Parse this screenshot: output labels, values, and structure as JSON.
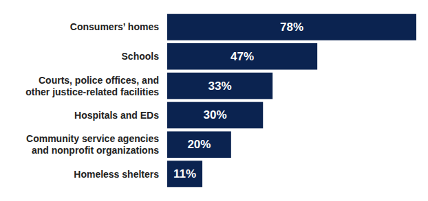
{
  "chart_data": {
    "type": "bar",
    "orientation": "horizontal",
    "categories": [
      "Consumers’ homes",
      "Schools",
      "Courts, police offices, and other justice-related facilities",
      "Hospitals and EDs",
      "Community service agencies and nonprofit organizations",
      "Homeless shelters"
    ],
    "values": [
      78,
      47,
      33,
      30,
      20,
      11
    ],
    "value_labels": [
      "78%",
      "47%",
      "33%",
      "30%",
      "20%",
      "11%"
    ],
    "color": "#0b2350",
    "data_labels": true,
    "tick_labels": "y"
  }
}
